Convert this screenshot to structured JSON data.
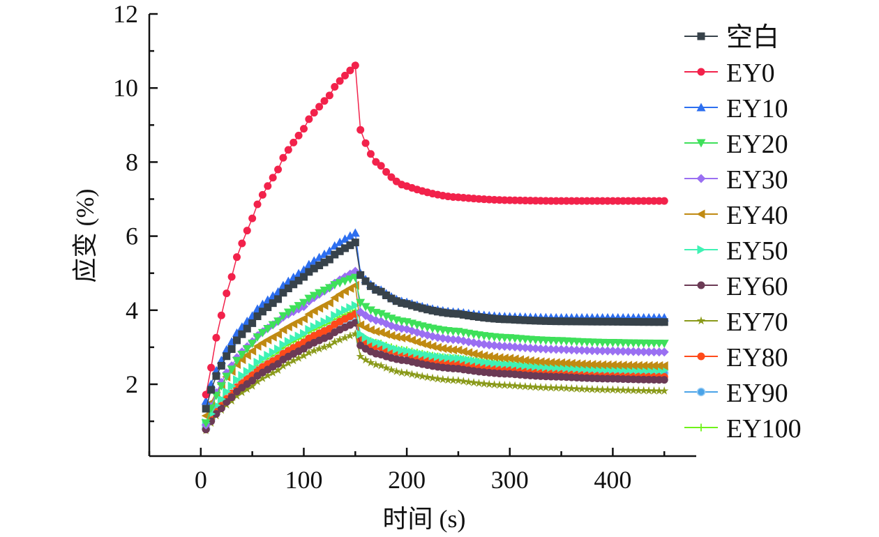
{
  "chart_data": {
    "type": "line",
    "title": "",
    "xlabel": "时间 (s)",
    "ylabel": "应变 (%)",
    "xlim": [
      -50,
      481
    ],
    "ylim": [
      0.06,
      12
    ],
    "xticks": [
      0,
      100,
      200,
      300,
      400
    ],
    "yticks": [
      2,
      4,
      6,
      8,
      10,
      12
    ],
    "x_minor_step": 50,
    "y_minor_step": 1,
    "grid": false,
    "legend_position": "right",
    "marker_interval_s": 5,
    "x_range_of_series": [
      5,
      450
    ],
    "sample_x": [
      5,
      10,
      20,
      30,
      50,
      75,
      100,
      125,
      150,
      155,
      175,
      200,
      250,
      300,
      350,
      400,
      450
    ],
    "series": [
      {
        "name": "空白",
        "color": "#37424a",
        "marker": "square",
        "values": [
          1.34,
          1.85,
          2.5,
          2.95,
          3.65,
          4.3,
          4.9,
          5.37,
          5.83,
          4.95,
          4.5,
          4.17,
          3.9,
          3.75,
          3.7,
          3.69,
          3.68
        ]
      },
      {
        "name": "EY0",
        "color": "#f2224b",
        "marker": "circle",
        "values": [
          1.72,
          2.45,
          3.86,
          4.9,
          6.48,
          7.8,
          8.9,
          9.8,
          10.61,
          8.87,
          7.9,
          7.35,
          7.05,
          6.97,
          6.95,
          6.95,
          6.95
        ]
      },
      {
        "name": "EY10",
        "color": "#2d6ff0",
        "marker": "triangle-up",
        "values": [
          1.55,
          2.0,
          2.65,
          3.15,
          3.85,
          4.5,
          5.09,
          5.6,
          6.09,
          5.0,
          4.55,
          4.22,
          3.95,
          3.83,
          3.8,
          3.8,
          3.8
        ]
      },
      {
        "name": "EY20",
        "color": "#3ee05a",
        "marker": "triangle-down",
        "values": [
          0.95,
          1.35,
          1.95,
          2.4,
          3.1,
          3.7,
          4.2,
          4.6,
          4.88,
          4.2,
          3.9,
          3.68,
          3.42,
          3.25,
          3.17,
          3.12,
          3.1
        ]
      },
      {
        "name": "EY30",
        "color": "#9a6ff2",
        "marker": "diamond",
        "values": [
          0.9,
          1.4,
          2.05,
          2.5,
          3.15,
          3.7,
          4.1,
          4.6,
          5.05,
          3.95,
          3.7,
          3.49,
          3.2,
          3.02,
          2.94,
          2.9,
          2.87
        ]
      },
      {
        "name": "EY40",
        "color": "#c08a12",
        "marker": "triangle-left",
        "values": [
          1.15,
          1.5,
          2.0,
          2.35,
          2.9,
          3.35,
          3.77,
          4.2,
          4.67,
          3.6,
          3.4,
          3.24,
          2.92,
          2.7,
          2.58,
          2.52,
          2.5
        ]
      },
      {
        "name": "EY50",
        "color": "#3ff2b4",
        "marker": "triangle-right",
        "values": [
          0.96,
          1.2,
          1.6,
          1.95,
          2.45,
          2.95,
          3.37,
          3.75,
          4.13,
          3.35,
          3.1,
          2.9,
          2.7,
          2.55,
          2.45,
          2.4,
          2.38
        ]
      },
      {
        "name": "EY60",
        "color": "#6b3a55",
        "marker": "hexagon",
        "values": [
          0.78,
          1.0,
          1.35,
          1.65,
          2.1,
          2.55,
          2.96,
          3.3,
          3.66,
          3.05,
          2.8,
          2.64,
          2.42,
          2.28,
          2.2,
          2.15,
          2.12
        ]
      },
      {
        "name": "EY70",
        "color": "#8a9a1a",
        "marker": "star",
        "values": [
          0.75,
          0.95,
          1.3,
          1.55,
          1.95,
          2.38,
          2.77,
          3.05,
          3.36,
          2.75,
          2.5,
          2.3,
          2.1,
          1.97,
          1.9,
          1.85,
          1.82
        ]
      },
      {
        "name": "EY80",
        "color": "#ff4a1a",
        "marker": "pentagon",
        "values": [
          0.78,
          1.05,
          1.42,
          1.75,
          2.25,
          2.7,
          3.13,
          3.5,
          3.9,
          3.2,
          3.0,
          2.83,
          2.55,
          2.38,
          2.28,
          2.22,
          2.2
        ]
      },
      {
        "name": "EY90",
        "color": "#4aa3e8",
        "marker": "sphere",
        "values": [
          0.8,
          1.05,
          1.42,
          1.75,
          2.25,
          2.7,
          3.11,
          3.5,
          3.88,
          3.15,
          2.98,
          2.83,
          2.6,
          2.45,
          2.36,
          2.32,
          2.3
        ]
      },
      {
        "name": "EY100",
        "color": "#6ff21a",
        "marker": "plus",
        "values": [
          0.85,
          1.12,
          1.5,
          1.82,
          2.35,
          2.85,
          3.3,
          3.65,
          4.0,
          3.3,
          3.1,
          2.92,
          2.7,
          2.55,
          2.47,
          2.43,
          2.42
        ]
      }
    ]
  }
}
